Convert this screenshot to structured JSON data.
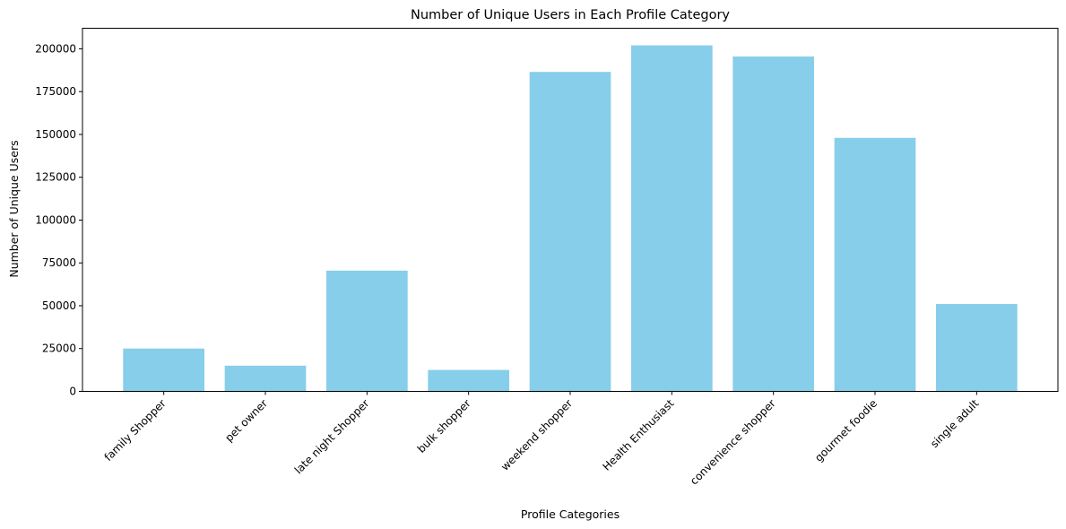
{
  "chart_data": {
    "type": "bar",
    "title": "Number of Unique Users in Each Profile Category",
    "xlabel": "Profile Categories",
    "ylabel": "Number of Unique Users",
    "categories": [
      "family Shopper",
      "pet owner",
      "late night Shopper",
      "bulk shopper",
      "weekend shopper",
      "Health Enthusiast",
      "convenience shopper",
      "gourmet foodie",
      "single adult"
    ],
    "values": [
      25000,
      15000,
      70500,
      12500,
      186500,
      202000,
      195500,
      148000,
      51000
    ],
    "ylim": [
      0,
      212000
    ],
    "yticks": [
      0,
      25000,
      50000,
      75000,
      100000,
      125000,
      150000,
      175000,
      200000
    ],
    "bar_color": "#87ceeb",
    "grid": false,
    "legend": "none"
  }
}
